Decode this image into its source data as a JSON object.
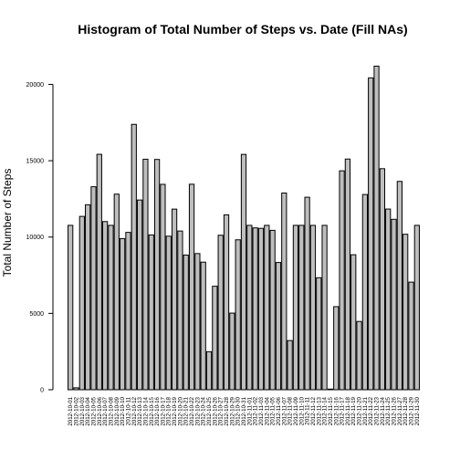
{
  "chart_data": {
    "type": "bar",
    "title": "Histogram of Total Number of Steps vs. Date (Fill NAs)",
    "xlabel": "",
    "ylabel": "Total Number of Steps",
    "ylim": [
      0,
      22000
    ],
    "yticks": [
      0,
      5000,
      10000,
      15000,
      20000
    ],
    "ytick_labels": [
      "0",
      "5000",
      "10000",
      "15000",
      "20000"
    ],
    "grid": false,
    "bar_color": "#bebebe",
    "categories": [
      "2012-10-01",
      "2012-10-02",
      "2012-10-03",
      "2012-10-04",
      "2012-10-05",
      "2012-10-06",
      "2012-10-07",
      "2012-10-08",
      "2012-10-09",
      "2012-10-10",
      "2012-10-11",
      "2012-10-12",
      "2012-10-13",
      "2012-10-14",
      "2012-10-15",
      "2012-10-16",
      "2012-10-17",
      "2012-10-18",
      "2012-10-19",
      "2012-10-20",
      "2012-10-21",
      "2012-10-22",
      "2012-10-23",
      "2012-10-24",
      "2012-10-25",
      "2012-10-26",
      "2012-10-27",
      "2012-10-28",
      "2012-10-29",
      "2012-10-30",
      "2012-10-31",
      "2012-11-01",
      "2012-11-02",
      "2012-11-03",
      "2012-11-04",
      "2012-11-05",
      "2012-11-06",
      "2012-11-07",
      "2012-11-08",
      "2012-11-09",
      "2012-11-10",
      "2012-11-11",
      "2012-11-12",
      "2012-11-13",
      "2012-11-14",
      "2012-11-15",
      "2012-11-16",
      "2012-11-17",
      "2012-11-18",
      "2012-11-19",
      "2012-11-20",
      "2012-11-21",
      "2012-11-22",
      "2012-11-23",
      "2012-11-24",
      "2012-11-25",
      "2012-11-26",
      "2012-11-27",
      "2012-11-28",
      "2012-11-29",
      "2012-11-30"
    ],
    "values": [
      10766,
      126,
      11352,
      12116,
      13294,
      15420,
      11015,
      10766,
      12811,
      9900,
      10304,
      17382,
      12426,
      15098,
      10139,
      15084,
      13452,
      10056,
      11829,
      10395,
      8821,
      13460,
      8918,
      8355,
      2492,
      6778,
      10119,
      11458,
      5018,
      9819,
      15414,
      10766,
      10600,
      10571,
      10766,
      10439,
      8334,
      12883,
      3219,
      10766,
      10766,
      12608,
      10765,
      7336,
      10766,
      41,
      5441,
      14339,
      15110,
      8841,
      4472,
      12787,
      20427,
      21194,
      14478,
      11834,
      11162,
      13646,
      10183,
      7047,
      10766
    ]
  }
}
